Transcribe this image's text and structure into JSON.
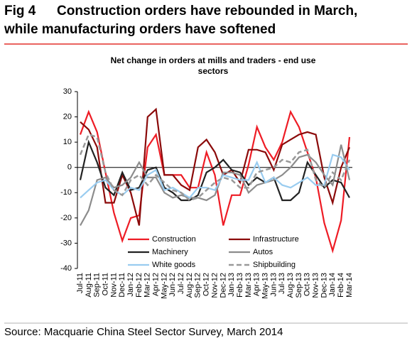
{
  "figure_label": "Fig 4",
  "title": [
    "Construction orders have rebounded in March,",
    "while manufacturing orders have softened"
  ],
  "source": "Source: Macquarie China Steel Sector Survey, March 2014",
  "chart_data": {
    "type": "line",
    "title": [
      "Net change in orders at mills and traders - end use",
      "sectors"
    ],
    "categories": [
      "Jul-11",
      "Aug-11",
      "Sep-11",
      "Oct-11",
      "Nov-11",
      "Dec-11",
      "Jan-12",
      "Feb-12",
      "Mar-12",
      "Apr-12",
      "May-12",
      "Jun-12",
      "Jul-12",
      "Aug-12",
      "Sep-12",
      "Oct-12",
      "Nov-12",
      "Dec-12",
      "Jan-13",
      "Feb-13",
      "Mar-13",
      "Apr-13",
      "May-13",
      "Jun-13",
      "Jul-13",
      "Aug-13",
      "Sep-13",
      "Oct-13",
      "Nov-13",
      "Dec-13",
      "Jan-14",
      "Feb-14",
      "Mar-14"
    ],
    "ylim": [
      -40,
      30
    ],
    "yticks": [
      30,
      20,
      10,
      0,
      -10,
      -20,
      -30,
      -40
    ],
    "series": [
      {
        "name": "Construction",
        "color": "#ee1c25",
        "dashed": false,
        "values": [
          13,
          22,
          14,
          -2,
          -18,
          -29,
          -20,
          -19,
          8,
          13,
          -3,
          -3,
          -3,
          -8,
          -8,
          6,
          -3,
          -23,
          -11,
          -11,
          1,
          16,
          8,
          3,
          10,
          22,
          16,
          6,
          -4,
          -22,
          -33,
          -21,
          12
        ]
      },
      {
        "name": "Infrastructure",
        "color": "#8b0a0a",
        "dashed": false,
        "values": [
          18,
          15,
          8,
          -14,
          -14,
          -3,
          -10,
          -23,
          20,
          23,
          -3,
          -3,
          -7,
          -9,
          8,
          11,
          6,
          -3,
          -1,
          -6,
          7,
          7,
          6,
          -1,
          9,
          11,
          13,
          14,
          13,
          -4,
          -14,
          0,
          8
        ]
      },
      {
        "name": "Machinery",
        "color": "#222222",
        "dashed": false,
        "values": [
          -5,
          10,
          2,
          -8,
          -11,
          -2,
          -9,
          -8,
          -1,
          0,
          -8,
          -10,
          -13,
          -13,
          -11,
          -2,
          0,
          3,
          -1,
          -2,
          -7,
          -4,
          -6,
          -4,
          -13,
          -13,
          -10,
          2,
          -3,
          -8,
          -5,
          -6,
          -12
        ]
      },
      {
        "name": "Autos",
        "color": "#8c8c8c",
        "dashed": false,
        "values": [
          -23,
          -17,
          -5,
          -4,
          -8,
          -7,
          -4,
          2,
          -4,
          -4,
          -10,
          -12,
          -11,
          -12,
          -12,
          -13,
          -11,
          -2,
          -2,
          -3,
          -10,
          -7,
          -6,
          -5,
          -3,
          0,
          4,
          5,
          2,
          -3,
          -7,
          9,
          -5
        ]
      },
      {
        "name": "White goods",
        "color": "#99ccf0",
        "dashed": false,
        "values": [
          -12,
          -9,
          -6,
          -5,
          -9,
          -11,
          -8,
          -9,
          -3,
          -1,
          -9,
          -8,
          -10,
          -12,
          -8,
          -8,
          -9,
          -3,
          -4,
          -5,
          -5,
          2,
          -6,
          -4,
          -7,
          -8,
          -6,
          -4,
          -7,
          -7,
          5,
          4,
          -1
        ]
      },
      {
        "name": "Shipbuilding",
        "color": "#999999",
        "dashed": true,
        "values": [
          5,
          13,
          12,
          -2,
          -9,
          -11,
          -5,
          -3,
          -7,
          -3,
          -6,
          -9,
          -10,
          -13,
          -12,
          -9,
          -6,
          -4,
          -5,
          -8,
          -8,
          -2,
          -1,
          0,
          3,
          2,
          6,
          7,
          -5,
          -8,
          -2,
          -5,
          3
        ]
      }
    ]
  }
}
